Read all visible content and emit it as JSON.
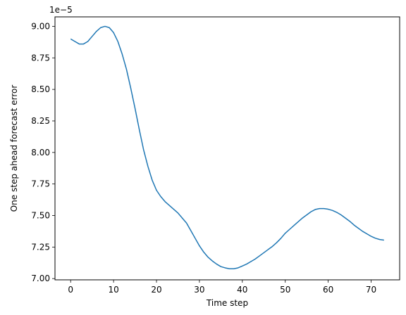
{
  "chart_data": {
    "type": "line",
    "title": "",
    "xlabel": "Time step",
    "ylabel": "One step ahead forecast error",
    "y_offset_label": "1e−5",
    "xlim": [
      -3.65,
      76.65
    ],
    "ylim": [
      6.99,
      9.075
    ],
    "x_ticks": [
      0,
      10,
      20,
      30,
      40,
      50,
      60,
      70
    ],
    "x_tick_labels": [
      "0",
      "10",
      "20",
      "30",
      "40",
      "50",
      "60",
      "70"
    ],
    "y_ticks": [
      7.0,
      7.25,
      7.5,
      7.75,
      8.0,
      8.25,
      8.5,
      8.75,
      9.0
    ],
    "y_tick_labels": [
      "7.00",
      "7.25",
      "7.50",
      "7.75",
      "8.00",
      "8.25",
      "8.50",
      "8.75",
      "9.00"
    ],
    "grid": false,
    "legend": "none",
    "line_color": "#1f77b4",
    "series": [
      {
        "x": [
          0,
          1,
          2,
          3,
          4,
          5,
          6,
          7,
          8,
          9,
          10,
          11,
          12,
          13,
          14,
          15,
          16,
          17,
          18,
          19,
          20,
          21,
          22,
          23,
          24,
          25,
          26,
          27,
          28,
          29,
          30,
          31,
          32,
          33,
          34,
          35,
          36,
          37,
          38,
          39,
          40,
          41,
          42,
          43,
          44,
          45,
          46,
          47,
          48,
          49,
          50,
          51,
          52,
          53,
          54,
          55,
          56,
          57,
          58,
          59,
          60,
          61,
          62,
          63,
          64,
          65,
          66,
          67,
          68,
          69,
          70,
          71,
          72,
          73
        ],
        "values": [
          8.9,
          8.88,
          8.86,
          8.86,
          8.88,
          8.92,
          8.96,
          8.99,
          9.0,
          8.99,
          8.95,
          8.88,
          8.78,
          8.66,
          8.51,
          8.35,
          8.18,
          8.02,
          7.89,
          7.78,
          7.7,
          7.65,
          7.61,
          7.58,
          7.55,
          7.52,
          7.48,
          7.44,
          7.38,
          7.32,
          7.26,
          7.21,
          7.17,
          7.14,
          7.115,
          7.095,
          7.085,
          7.078,
          7.078,
          7.085,
          7.1,
          7.115,
          7.135,
          7.155,
          7.18,
          7.205,
          7.23,
          7.255,
          7.285,
          7.32,
          7.36,
          7.39,
          7.42,
          7.45,
          7.48,
          7.505,
          7.53,
          7.548,
          7.555,
          7.555,
          7.55,
          7.54,
          7.525,
          7.505,
          7.48,
          7.455,
          7.425,
          7.4,
          7.375,
          7.355,
          7.335,
          7.32,
          7.31,
          7.305
        ]
      }
    ]
  }
}
